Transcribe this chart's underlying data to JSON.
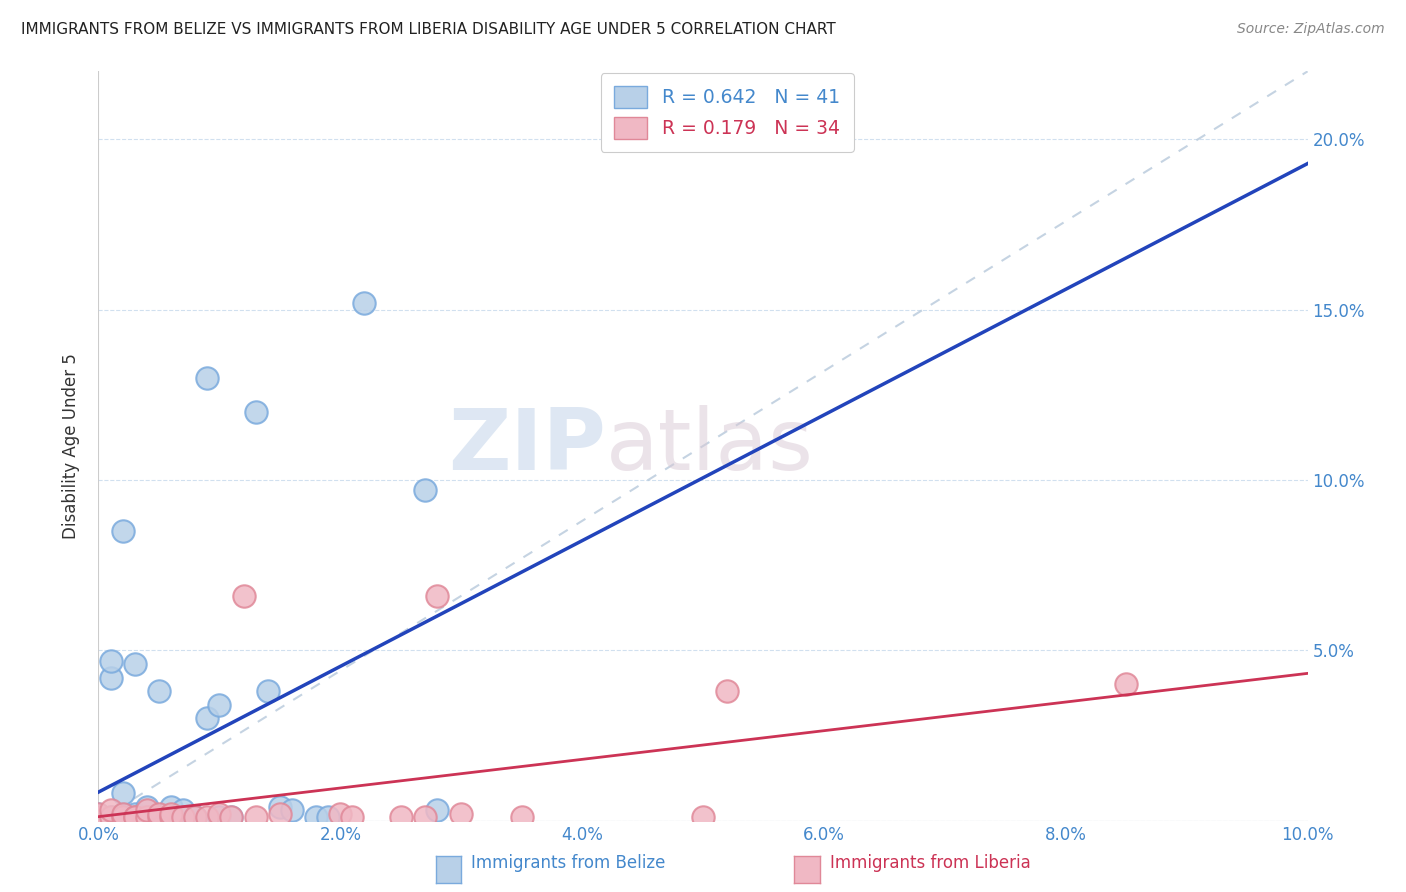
{
  "title": "IMMIGRANTS FROM BELIZE VS IMMIGRANTS FROM LIBERIA DISABILITY AGE UNDER 5 CORRELATION CHART",
  "source": "Source: ZipAtlas.com",
  "ylabel": "Disability Age Under 5",
  "xlim": [
    0.0,
    0.1
  ],
  "ylim": [
    0.0,
    0.22
  ],
  "xticks": [
    0.0,
    0.02,
    0.04,
    0.06,
    0.08,
    0.1
  ],
  "yticks": [
    0.0,
    0.05,
    0.1,
    0.15,
    0.2
  ],
  "xtick_labels": [
    "0.0%",
    "2.0%",
    "4.0%",
    "6.0%",
    "8.0%",
    "10.0%"
  ],
  "ytick_labels_left": [
    "",
    "",
    "",
    "",
    ""
  ],
  "ytick_labels_right": [
    "",
    "5.0%",
    "10.0%",
    "15.0%",
    "20.0%"
  ],
  "belize_color": "#b8d0e8",
  "belize_edge_color": "#7aaadd",
  "liberia_color": "#f0b8c4",
  "liberia_edge_color": "#e08898",
  "belize_line_color": "#2244bb",
  "liberia_line_color": "#cc3355",
  "diagonal_color": "#bbccdd",
  "R_belize": 0.642,
  "N_belize": 41,
  "R_liberia": 0.179,
  "N_liberia": 34,
  "watermark_zip": "ZIP",
  "watermark_atlas": "atlas",
  "legend_label_belize": "Immigrants from Belize",
  "legend_label_liberia": "Immigrants from Liberia",
  "belize_x": [
    0.0,
    0.0,
    0.0,
    0.0,
    0.0,
    0.001,
    0.001,
    0.001,
    0.001,
    0.002,
    0.002,
    0.002,
    0.002,
    0.003,
    0.003,
    0.003,
    0.004,
    0.004,
    0.005,
    0.005,
    0.005,
    0.006,
    0.006,
    0.007,
    0.007,
    0.008,
    0.008,
    0.009,
    0.009,
    0.01,
    0.01,
    0.011,
    0.013,
    0.014,
    0.015,
    0.016,
    0.018,
    0.019,
    0.022,
    0.027,
    0.028
  ],
  "belize_y": [
    0.0,
    0.0,
    0.001,
    0.001,
    0.002,
    0.0,
    0.001,
    0.042,
    0.047,
    0.001,
    0.002,
    0.008,
    0.085,
    0.001,
    0.002,
    0.046,
    0.001,
    0.004,
    0.001,
    0.001,
    0.038,
    0.001,
    0.004,
    0.001,
    0.003,
    0.001,
    0.001,
    0.13,
    0.03,
    0.001,
    0.034,
    0.001,
    0.12,
    0.038,
    0.004,
    0.003,
    0.001,
    0.001,
    0.152,
    0.097,
    0.003
  ],
  "liberia_x": [
    0.0,
    0.0,
    0.0,
    0.0,
    0.001,
    0.001,
    0.002,
    0.002,
    0.003,
    0.003,
    0.004,
    0.004,
    0.005,
    0.005,
    0.006,
    0.006,
    0.007,
    0.008,
    0.009,
    0.01,
    0.011,
    0.012,
    0.013,
    0.015,
    0.02,
    0.021,
    0.025,
    0.027,
    0.028,
    0.03,
    0.035,
    0.05,
    0.052,
    0.085
  ],
  "liberia_y": [
    0.0,
    0.0,
    0.001,
    0.002,
    0.001,
    0.003,
    0.001,
    0.002,
    0.001,
    0.001,
    0.001,
    0.003,
    0.001,
    0.002,
    0.001,
    0.002,
    0.001,
    0.001,
    0.001,
    0.002,
    0.001,
    0.066,
    0.001,
    0.002,
    0.002,
    0.001,
    0.001,
    0.001,
    0.066,
    0.002,
    0.001,
    0.001,
    0.038,
    0.04
  ]
}
